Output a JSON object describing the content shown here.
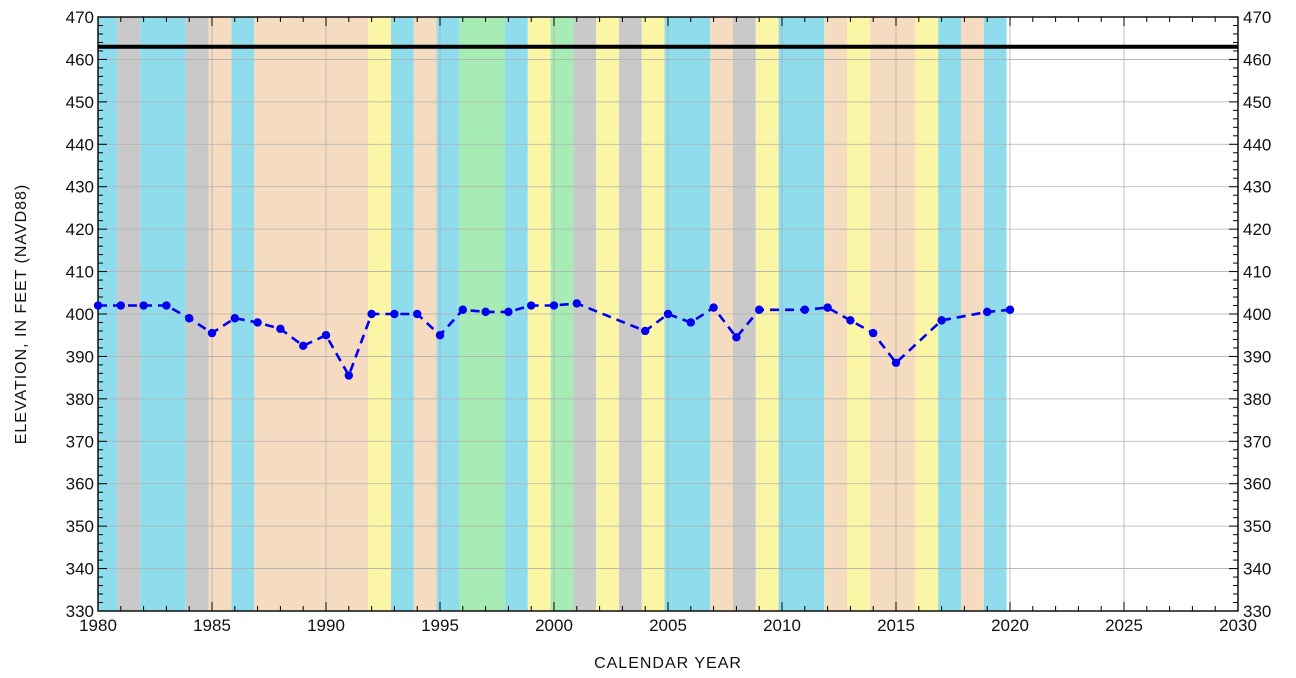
{
  "chart_data": {
    "type": "line",
    "title": "",
    "xlabel": "CALENDAR YEAR",
    "ylabel": "ELEVATION, IN FEET (NAVD88)",
    "xlim": [
      1980,
      2030
    ],
    "ylim": [
      330,
      470
    ],
    "x_ticks": [
      1980,
      1985,
      1990,
      1995,
      2000,
      2005,
      2010,
      2015,
      2020,
      2025,
      2030
    ],
    "y_ticks": [
      330,
      340,
      350,
      360,
      370,
      380,
      390,
      400,
      410,
      420,
      430,
      440,
      450,
      460,
      470
    ],
    "grid": true,
    "reference_line": {
      "value": 463,
      "color": "#000000"
    },
    "series": [
      {
        "color": "#0000ee",
        "style": "dashed-with-markers",
        "x": [
          1980,
          1981,
          1982,
          1983,
          1984,
          1985,
          1986,
          1987,
          1988,
          1989,
          1990,
          1991,
          1992,
          1993,
          1994,
          1995,
          1996,
          1997,
          1998,
          1999,
          2000,
          2001,
          2004,
          2005,
          2006,
          2007,
          2008,
          2009,
          2011,
          2012,
          2013,
          2014,
          2015,
          2017,
          2019,
          2020
        ],
        "y": [
          402,
          402,
          402,
          402,
          399,
          395.5,
          399,
          398,
          396.5,
          392.5,
          395,
          385.5,
          400,
          400,
          400,
          395,
          401,
          400.5,
          400.5,
          402,
          402,
          402.5,
          396,
          400,
          398,
          401.5,
          394.5,
          401,
          401,
          401.5,
          398.5,
          395.5,
          388.5,
          398.5,
          400.5,
          401
        ]
      }
    ],
    "background_bands": [
      {
        "start": 1979.85,
        "end": 1980.85,
        "color": "#8fdcec"
      },
      {
        "start": 1980.85,
        "end": 1981.85,
        "color": "#c9c9c9"
      },
      {
        "start": 1981.85,
        "end": 1983.85,
        "color": "#8fdcec"
      },
      {
        "start": 1983.85,
        "end": 1984.85,
        "color": "#c9c9c9"
      },
      {
        "start": 1984.85,
        "end": 1985.85,
        "color": "#f5dcc0"
      },
      {
        "start": 1985.85,
        "end": 1986.85,
        "color": "#8fdcec"
      },
      {
        "start": 1986.85,
        "end": 1991.85,
        "color": "#f5dcc0"
      },
      {
        "start": 1991.85,
        "end": 1992.85,
        "color": "#fbf6a6"
      },
      {
        "start": 1992.85,
        "end": 1993.85,
        "color": "#8fdcec"
      },
      {
        "start": 1993.85,
        "end": 1994.85,
        "color": "#f5dcc0"
      },
      {
        "start": 1994.85,
        "end": 1995.85,
        "color": "#8fdcec"
      },
      {
        "start": 1995.85,
        "end": 1997.85,
        "color": "#a7ecb4"
      },
      {
        "start": 1997.85,
        "end": 1998.85,
        "color": "#8fdcec"
      },
      {
        "start": 1998.85,
        "end": 1999.85,
        "color": "#fbf6a6"
      },
      {
        "start": 1999.85,
        "end": 2000.85,
        "color": "#a7ecb4"
      },
      {
        "start": 2000.85,
        "end": 2001.85,
        "color": "#c9c9c9"
      },
      {
        "start": 2001.85,
        "end": 2002.85,
        "color": "#fbf6a6"
      },
      {
        "start": 2002.85,
        "end": 2003.85,
        "color": "#c9c9c9"
      },
      {
        "start": 2003.85,
        "end": 2004.85,
        "color": "#fbf6a6"
      },
      {
        "start": 2004.85,
        "end": 2006.85,
        "color": "#8fdcec"
      },
      {
        "start": 2006.85,
        "end": 2007.85,
        "color": "#f5dcc0"
      },
      {
        "start": 2007.85,
        "end": 2008.85,
        "color": "#c9c9c9"
      },
      {
        "start": 2008.85,
        "end": 2009.85,
        "color": "#fbf6a6"
      },
      {
        "start": 2009.85,
        "end": 2011.85,
        "color": "#8fdcec"
      },
      {
        "start": 2011.85,
        "end": 2012.85,
        "color": "#f5dcc0"
      },
      {
        "start": 2012.85,
        "end": 2013.85,
        "color": "#fbf6a6"
      },
      {
        "start": 2013.85,
        "end": 2015.85,
        "color": "#f5dcc0"
      },
      {
        "start": 2015.85,
        "end": 2016.85,
        "color": "#fbf6a6"
      },
      {
        "start": 2016.85,
        "end": 2017.85,
        "color": "#8fdcec"
      },
      {
        "start": 2017.85,
        "end": 2018.85,
        "color": "#f5dcc0"
      },
      {
        "start": 2018.85,
        "end": 2019.85,
        "color": "#8fdcec"
      }
    ]
  }
}
